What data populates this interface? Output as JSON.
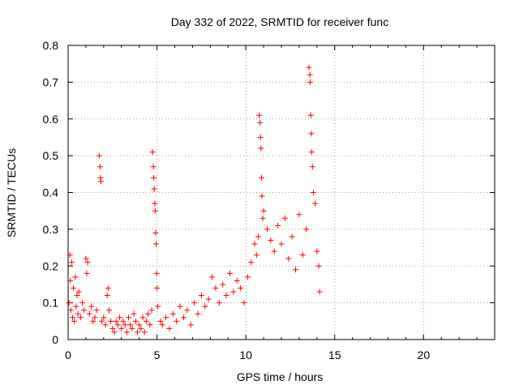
{
  "chart_data": {
    "type": "scatter",
    "title": "Day 332 of 2022, SRMTID for receiver func",
    "xlabel": "GPS time / hours",
    "ylabel": "SRMTID / TECUs",
    "xlim": [
      0,
      24
    ],
    "ylim": [
      0,
      0.8
    ],
    "xticks": [
      0,
      5,
      10,
      15,
      20
    ],
    "xtick_labels": [
      "0",
      "5",
      "10",
      "15",
      "20"
    ],
    "yticks": [
      0,
      0.1,
      0.2,
      0.3,
      0.4,
      0.5,
      0.6,
      0.7,
      0.8
    ],
    "ytick_labels": [
      "0",
      "0.1",
      "0.2",
      "0.3",
      "0.4",
      "0.5",
      "0.6",
      "0.7",
      "0.8"
    ],
    "grid": true,
    "marker": "+",
    "marker_color": "#ff0000",
    "series": [
      {
        "name": "SRMTID",
        "color": "#ff0000",
        "points": [
          [
            0.05,
            0.1
          ],
          [
            0.1,
            0.23
          ],
          [
            0.12,
            0.16
          ],
          [
            0.15,
            0.08
          ],
          [
            0.2,
            0.21
          ],
          [
            0.25,
            0.06
          ],
          [
            0.3,
            0.14
          ],
          [
            0.35,
            0.05
          ],
          [
            0.4,
            0.17
          ],
          [
            0.45,
            0.09
          ],
          [
            0.5,
            0.12
          ],
          [
            0.55,
            0.07
          ],
          [
            0.6,
            0.13
          ],
          [
            0.7,
            0.06
          ],
          [
            0.8,
            0.1
          ],
          [
            0.9,
            0.08
          ],
          [
            1.0,
            0.22
          ],
          [
            1.05,
            0.18
          ],
          [
            1.1,
            0.21
          ],
          [
            1.2,
            0.07
          ],
          [
            1.3,
            0.09
          ],
          [
            1.4,
            0.05
          ],
          [
            1.5,
            0.06
          ],
          [
            1.6,
            0.08
          ],
          [
            1.75,
            0.5
          ],
          [
            1.8,
            0.47
          ],
          [
            1.82,
            0.44
          ],
          [
            1.85,
            0.43
          ],
          [
            1.9,
            0.05
          ],
          [
            2.0,
            0.06
          ],
          [
            2.1,
            0.04
          ],
          [
            2.2,
            0.12
          ],
          [
            2.25,
            0.14
          ],
          [
            2.3,
            0.08
          ],
          [
            2.4,
            0.05
          ],
          [
            2.5,
            0.03
          ],
          [
            2.6,
            0.02
          ],
          [
            2.7,
            0.05
          ],
          [
            2.8,
            0.04
          ],
          [
            2.9,
            0.06
          ],
          [
            3.0,
            0.03
          ],
          [
            3.1,
            0.05
          ],
          [
            3.2,
            0.04
          ],
          [
            3.3,
            0.02
          ],
          [
            3.4,
            0.06
          ],
          [
            3.5,
            0.04
          ],
          [
            3.6,
            0.03
          ],
          [
            3.7,
            0.07
          ],
          [
            3.8,
            0.05
          ],
          [
            3.9,
            0.02
          ],
          [
            4.0,
            0.04
          ],
          [
            4.1,
            0.03
          ],
          [
            4.2,
            0.06
          ],
          [
            4.3,
            0.02
          ],
          [
            4.4,
            0.05
          ],
          [
            4.5,
            0.07
          ],
          [
            4.6,
            0.04
          ],
          [
            4.7,
            0.08
          ],
          [
            4.75,
            0.51
          ],
          [
            4.8,
            0.47
          ],
          [
            4.82,
            0.44
          ],
          [
            4.85,
            0.41
          ],
          [
            4.88,
            0.37
          ],
          [
            4.9,
            0.35
          ],
          [
            4.92,
            0.29
          ],
          [
            4.95,
            0.26
          ],
          [
            4.98,
            0.18
          ],
          [
            5.0,
            0.14
          ],
          [
            5.05,
            0.09
          ],
          [
            5.2,
            0.05
          ],
          [
            5.3,
            0.04
          ],
          [
            5.5,
            0.06
          ],
          [
            5.7,
            0.03
          ],
          [
            5.9,
            0.07
          ],
          [
            6.1,
            0.05
          ],
          [
            6.3,
            0.09
          ],
          [
            6.5,
            0.06
          ],
          [
            6.7,
            0.08
          ],
          [
            6.9,
            0.04
          ],
          [
            7.1,
            0.1
          ],
          [
            7.3,
            0.07
          ],
          [
            7.5,
            0.12
          ],
          [
            7.7,
            0.09
          ],
          [
            7.9,
            0.11
          ],
          [
            8.1,
            0.17
          ],
          [
            8.3,
            0.14
          ],
          [
            8.5,
            0.1
          ],
          [
            8.7,
            0.15
          ],
          [
            8.9,
            0.12
          ],
          [
            9.1,
            0.18
          ],
          [
            9.3,
            0.13
          ],
          [
            9.5,
            0.16
          ],
          [
            9.7,
            0.14
          ],
          [
            9.9,
            0.1
          ],
          [
            10.1,
            0.17
          ],
          [
            10.3,
            0.21
          ],
          [
            10.5,
            0.26
          ],
          [
            10.6,
            0.23
          ],
          [
            10.7,
            0.28
          ],
          [
            10.75,
            0.61
          ],
          [
            10.8,
            0.59
          ],
          [
            10.82,
            0.55
          ],
          [
            10.85,
            0.52
          ],
          [
            10.88,
            0.44
          ],
          [
            10.9,
            0.39
          ],
          [
            10.95,
            0.33
          ],
          [
            11.0,
            0.35
          ],
          [
            11.2,
            0.3
          ],
          [
            11.4,
            0.27
          ],
          [
            11.6,
            0.24
          ],
          [
            11.8,
            0.31
          ],
          [
            12.0,
            0.26
          ],
          [
            12.2,
            0.33
          ],
          [
            12.4,
            0.22
          ],
          [
            12.6,
            0.28
          ],
          [
            12.8,
            0.19
          ],
          [
            13.0,
            0.34
          ],
          [
            13.2,
            0.23
          ],
          [
            13.4,
            0.3
          ],
          [
            13.55,
            0.74
          ],
          [
            13.6,
            0.72
          ],
          [
            13.62,
            0.7
          ],
          [
            13.65,
            0.61
          ],
          [
            13.68,
            0.56
          ],
          [
            13.7,
            0.51
          ],
          [
            13.75,
            0.47
          ],
          [
            13.8,
            0.4
          ],
          [
            13.9,
            0.37
          ],
          [
            14.0,
            0.24
          ],
          [
            14.1,
            0.2
          ],
          [
            14.15,
            0.13
          ]
        ]
      }
    ]
  }
}
